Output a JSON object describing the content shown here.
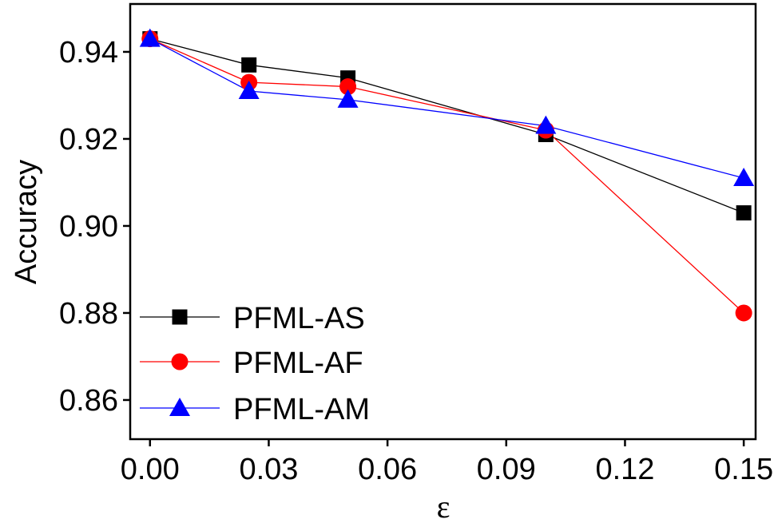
{
  "chart_data": {
    "type": "line",
    "xlabel": "ε",
    "ylabel": "Accuracy",
    "xlim": [
      -0.005,
      0.153
    ],
    "ylim": [
      0.851,
      0.951
    ],
    "x_ticks": [
      0.0,
      0.03,
      0.06,
      0.09,
      0.12,
      0.15
    ],
    "x_tick_labels": [
      "0.00",
      "0.03",
      "0.06",
      "0.09",
      "0.12",
      "0.15"
    ],
    "y_ticks": [
      0.86,
      0.88,
      0.9,
      0.92,
      0.94
    ],
    "y_tick_labels": [
      "0.86",
      "0.88",
      "0.90",
      "0.92",
      "0.94"
    ],
    "grid": false,
    "legend_position": "bottom-left",
    "x": [
      0.0,
      0.025,
      0.05,
      0.1,
      0.15
    ],
    "series": [
      {
        "name": "PFML-AS",
        "color": "#000000",
        "marker": "square",
        "values": [
          0.943,
          0.937,
          0.934,
          0.921,
          0.903
        ]
      },
      {
        "name": "PFML-AF",
        "color": "#ff0000",
        "marker": "circle",
        "values": [
          0.943,
          0.933,
          0.932,
          0.922,
          0.88
        ]
      },
      {
        "name": "PFML-AM",
        "color": "#0000ff",
        "marker": "triangle",
        "values": [
          0.943,
          0.931,
          0.929,
          0.923,
          0.911
        ]
      }
    ]
  }
}
